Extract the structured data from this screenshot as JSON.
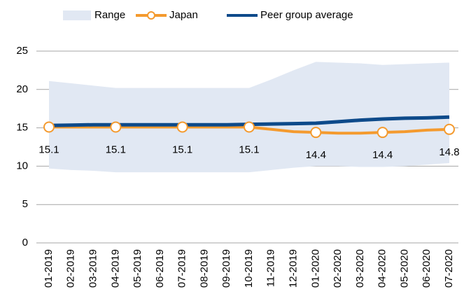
{
  "chart_data": {
    "type": "line",
    "categories": [
      "01-2019",
      "02-2019",
      "03-2019",
      "04-2019",
      "05-2019",
      "06-2019",
      "07-2019",
      "08-2019",
      "09-2019",
      "10-2019",
      "11-2019",
      "12-2019",
      "01-2020",
      "02-2020",
      "03-2020",
      "04-2020",
      "05-2020",
      "06-2020",
      "07-2020"
    ],
    "series": [
      {
        "name": "Range",
        "color": "#e1e8f3",
        "upper": [
          21.1,
          20.8,
          20.5,
          20.2,
          20.2,
          20.2,
          20.2,
          20.2,
          20.2,
          20.2,
          21.3,
          22.5,
          23.6,
          23.5,
          23.4,
          23.2,
          23.3,
          23.4,
          23.5
        ],
        "lower": [
          9.7,
          9.5,
          9.4,
          9.2,
          9.2,
          9.2,
          9.2,
          9.2,
          9.2,
          9.2,
          9.5,
          9.8,
          10.0,
          10.0,
          9.9,
          9.9,
          10.0,
          10.2,
          10.4
        ]
      },
      {
        "name": "Japan",
        "color": "#f49a2e",
        "values": [
          15.1,
          15.1,
          15.1,
          15.1,
          15.1,
          15.1,
          15.1,
          15.1,
          15.1,
          15.1,
          14.8,
          14.5,
          14.4,
          14.3,
          14.3,
          14.4,
          14.5,
          14.7,
          14.8
        ],
        "value_labels": [
          "15.1",
          null,
          null,
          "15.1",
          null,
          null,
          "15.1",
          null,
          null,
          "15.1",
          null,
          null,
          "14.4",
          null,
          null,
          "14.4",
          null,
          null,
          "14.8"
        ]
      },
      {
        "name": "Peer group average",
        "color": "#0d4a8a",
        "values": [
          15.3,
          15.35,
          15.4,
          15.4,
          15.4,
          15.4,
          15.4,
          15.4,
          15.4,
          15.45,
          15.5,
          15.55,
          15.6,
          15.8,
          16.0,
          16.15,
          16.25,
          16.3,
          16.4
        ]
      }
    ],
    "ylim": [
      0,
      25
    ],
    "yticks": [
      0,
      5,
      10,
      15,
      20,
      25
    ],
    "grid": true
  }
}
